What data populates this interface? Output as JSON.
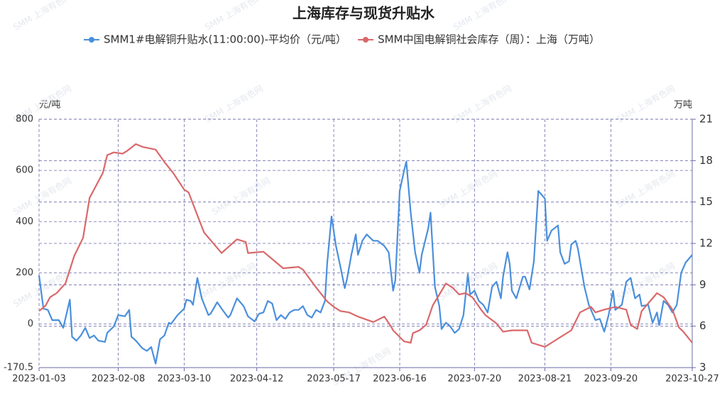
{
  "chart_data": {
    "type": "line",
    "title": "上海库存与现货升贴水",
    "watermark": "SMM 上海有色网",
    "ylabel": "元/吨",
    "y2label": "万吨",
    "xlim": [
      "2023-01-03",
      "2023-10-27"
    ],
    "xticks": [
      "2023-01-03",
      "2023-02-08",
      "2023-03-10",
      "2023-04-12",
      "2023-05-17",
      "2023-06-16",
      "2023-07-20",
      "2023-08-21",
      "2023-09-20",
      "2023-10-27"
    ],
    "ylim": [
      -170.5,
      800
    ],
    "yticks": [
      -170.5,
      0,
      200,
      400,
      600,
      800
    ],
    "y2lim": [
      3,
      21
    ],
    "y2ticks": [
      3,
      6,
      9,
      12,
      15,
      18,
      21
    ],
    "grid": true,
    "legend": "top",
    "series": [
      {
        "name": "SMM1#电解铜升贴水(11:00:00)-平均价（元/吨）",
        "color": "#4a8fdc",
        "axis": "y",
        "x": [
          "2023-01-03",
          "2023-01-05",
          "2023-01-07",
          "2023-01-09",
          "2023-01-12",
          "2023-01-14",
          "2023-01-17",
          "2023-01-18",
          "2023-01-20",
          "2023-01-22",
          "2023-01-24",
          "2023-01-26",
          "2023-01-28",
          "2023-01-30",
          "2023-02-02",
          "2023-02-03",
          "2023-02-06",
          "2023-02-08",
          "2023-02-11",
          "2023-02-13",
          "2023-02-14",
          "2023-02-16",
          "2023-02-19",
          "2023-02-21",
          "2023-02-23",
          "2023-02-25",
          "2023-02-27",
          "2023-03-01",
          "2023-03-03",
          "2023-03-04",
          "2023-03-07",
          "2023-03-10",
          "2023-03-11",
          "2023-03-13",
          "2023-03-14",
          "2023-03-16",
          "2023-03-18",
          "2023-03-21",
          "2023-03-22",
          "2023-03-25",
          "2023-03-27",
          "2023-03-30",
          "2023-03-31",
          "2023-04-03",
          "2023-04-06",
          "2023-04-08",
          "2023-04-11",
          "2023-04-13",
          "2023-04-15",
          "2023-04-17",
          "2023-04-19",
          "2023-04-21",
          "2023-04-23",
          "2023-04-25",
          "2023-04-27",
          "2023-04-29",
          "2023-05-01",
          "2023-05-03",
          "2023-05-05",
          "2023-05-07",
          "2023-05-09",
          "2023-05-11",
          "2023-05-13",
          "2023-05-14",
          "2023-05-16",
          "2023-05-18",
          "2023-05-20",
          "2023-05-22",
          "2023-05-23",
          "2023-05-25",
          "2023-05-27",
          "2023-05-28",
          "2023-05-30",
          "2023-06-01",
          "2023-06-04",
          "2023-06-06",
          "2023-06-09",
          "2023-06-11",
          "2023-06-13",
          "2023-06-14",
          "2023-06-16",
          "2023-06-18",
          "2023-06-19",
          "2023-06-21",
          "2023-06-23",
          "2023-06-25",
          "2023-06-26",
          "2023-06-29",
          "2023-06-30",
          "2023-07-02",
          "2023-07-04",
          "2023-07-05",
          "2023-07-07",
          "2023-07-09",
          "2023-07-11",
          "2023-07-13",
          "2023-07-15",
          "2023-07-17",
          "2023-07-18",
          "2023-07-20",
          "2023-07-22",
          "2023-07-24",
          "2023-07-26",
          "2023-07-28",
          "2023-07-30",
          "2023-08-01",
          "2023-08-02",
          "2023-08-04",
          "2023-08-05",
          "2023-08-06",
          "2023-08-08",
          "2023-08-11",
          "2023-08-12",
          "2023-08-14",
          "2023-08-16",
          "2023-08-18",
          "2023-08-21",
          "2023-08-22",
          "2023-08-24",
          "2023-08-27",
          "2023-08-28",
          "2023-08-30",
          "2023-09-01",
          "2023-09-02",
          "2023-09-04",
          "2023-09-05",
          "2023-09-08",
          "2023-09-10",
          "2023-09-13",
          "2023-09-15",
          "2023-09-17",
          "2023-09-19",
          "2023-09-21",
          "2023-09-22",
          "2023-09-25",
          "2023-09-27",
          "2023-09-29",
          "2023-10-01",
          "2023-10-03",
          "2023-10-04",
          "2023-10-07",
          "2023-10-09",
          "2023-10-11",
          "2023-10-12",
          "2023-10-14",
          "2023-10-16",
          "2023-10-18",
          "2023-10-20",
          "2023-10-22",
          "2023-10-24",
          "2023-10-27"
        ],
        "values": [
          190,
          60,
          55,
          15,
          15,
          -15,
          95,
          -50,
          -65,
          -45,
          -15,
          -55,
          -45,
          -65,
          -70,
          -35,
          -10,
          35,
          30,
          55,
          -50,
          -65,
          -95,
          -105,
          -90,
          -155,
          -60,
          -45,
          5,
          0,
          35,
          60,
          95,
          90,
          75,
          180,
          100,
          35,
          40,
          85,
          60,
          25,
          35,
          100,
          70,
          30,
          10,
          40,
          45,
          90,
          80,
          15,
          35,
          20,
          45,
          55,
          55,
          70,
          35,
          25,
          55,
          45,
          90,
          235,
          420,
          305,
          225,
          140,
          175,
          270,
          350,
          270,
          325,
          350,
          325,
          325,
          305,
          280,
          130,
          170,
          520,
          600,
          635,
          435,
          280,
          200,
          270,
          375,
          435,
          145,
          70,
          -20,
          5,
          -10,
          -35,
          -20,
          35,
          195,
          115,
          130,
          90,
          75,
          45,
          145,
          165,
          100,
          185,
          280,
          235,
          130,
          100,
          185,
          185,
          135,
          245,
          520,
          490,
          325,
          365,
          385,
          280,
          235,
          245,
          310,
          325,
          295,
          145,
          75,
          15,
          20,
          -30,
          35,
          130,
          55,
          75,
          165,
          180,
          100,
          115,
          70,
          75,
          5,
          45,
          -5,
          90,
          75,
          45,
          75,
          200,
          240,
          270
        ]
      },
      {
        "name": "SMM中国电解铜社会库存（周）：上海（万吨）",
        "color": "#d9686a",
        "axis": "y2",
        "x": [
          "2023-01-03",
          "2023-01-06",
          "2023-01-08",
          "2023-01-11",
          "2023-01-15",
          "2023-01-19",
          "2023-01-23",
          "2023-01-26",
          "2023-02-01",
          "2023-02-03",
          "2023-02-06",
          "2023-02-10",
          "2023-02-12",
          "2023-02-16",
          "2023-02-19",
          "2023-02-25",
          "2023-03-01",
          "2023-03-05",
          "2023-03-10",
          "2023-03-12",
          "2023-03-19",
          "2023-03-27",
          "2023-04-03",
          "2023-04-07",
          "2023-04-08",
          "2023-04-15",
          "2023-04-24",
          "2023-05-01",
          "2023-05-03",
          "2023-05-09",
          "2023-05-11",
          "2023-05-14",
          "2023-05-17",
          "2023-05-20",
          "2023-05-24",
          "2023-05-28",
          "2023-06-04",
          "2023-06-09",
          "2023-06-12",
          "2023-06-13",
          "2023-06-18",
          "2023-06-21",
          "2023-06-22",
          "2023-06-25",
          "2023-06-28",
          "2023-07-01",
          "2023-07-07",
          "2023-07-10",
          "2023-07-13",
          "2023-07-16",
          "2023-07-19",
          "2023-07-23",
          "2023-07-25",
          "2023-07-30",
          "2023-08-02",
          "2023-08-06",
          "2023-08-13",
          "2023-08-15",
          "2023-08-21",
          "2023-08-24",
          "2023-08-28",
          "2023-09-02",
          "2023-09-06",
          "2023-09-11",
          "2023-09-13",
          "2023-09-17",
          "2023-09-22",
          "2023-09-27",
          "2023-09-29",
          "2023-10-02",
          "2023-10-04",
          "2023-10-11",
          "2023-10-14",
          "2023-10-18",
          "2023-10-21",
          "2023-10-23",
          "2023-10-27"
        ],
        "values": [
          7.1,
          7.5,
          8.1,
          8.4,
          9.1,
          11.1,
          12.4,
          15.3,
          17.1,
          18.4,
          18.6,
          18.5,
          18.7,
          19.2,
          19.0,
          18.8,
          17.9,
          17.1,
          15.9,
          15.7,
          12.8,
          11.3,
          12.3,
          12.1,
          11.3,
          11.4,
          10.2,
          10.3,
          10.1,
          8.8,
          8.4,
          7.8,
          7.4,
          7.1,
          7.0,
          6.7,
          6.3,
          6.7,
          6.0,
          5.7,
          4.9,
          4.8,
          5.5,
          5.7,
          6.1,
          7.5,
          9.1,
          8.8,
          8.3,
          8.4,
          8.1,
          7.2,
          6.8,
          6.2,
          5.6,
          5.7,
          5.7,
          4.8,
          4.5,
          4.8,
          5.2,
          5.7,
          7.0,
          7.4,
          7.0,
          7.2,
          7.4,
          7.2,
          6.1,
          5.8,
          7.1,
          8.4,
          8.1,
          7.2,
          5.9,
          5.6,
          4.8
        ]
      }
    ]
  }
}
